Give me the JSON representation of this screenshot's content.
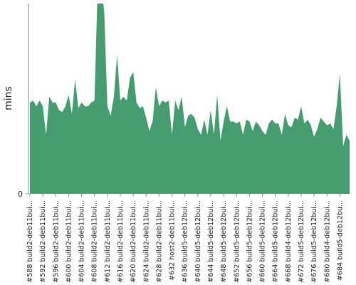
{
  "chart_data": {
    "type": "area",
    "y_label": "mins",
    "color": "#459c6e",
    "ylim": [
      0,
      100
    ],
    "yticks": [
      0
    ],
    "categories": [
      "#588 build2-deb11bui...",
      null,
      null,
      null,
      "#592 build2-deb11bui...",
      null,
      null,
      null,
      "#596 build2-deb11bui...",
      null,
      null,
      null,
      "#600 build2-deb11bui...",
      null,
      null,
      null,
      "#604 build2-deb11bui...",
      null,
      null,
      null,
      "#608 build2-deb11bui...",
      null,
      null,
      null,
      "#612 build2-deb11bui...",
      null,
      null,
      null,
      "#616 build2-deb11bui...",
      null,
      null,
      null,
      "#620 build2-deb11bui...",
      null,
      null,
      null,
      "#624 build2-deb11bui...",
      null,
      null,
      null,
      "#628 build2-deb11bui...",
      null,
      null,
      null,
      "#632 host2-deb11bui...",
      null,
      null,
      null,
      "#636 build5-deb12bui...",
      null,
      null,
      null,
      "#640 build5-deb12bui...",
      null,
      null,
      null,
      "#644 build5-deb12bui...",
      null,
      null,
      null,
      "#648 build5-deb12bui...",
      null,
      null,
      null,
      "#652 build5-deb12bui...",
      null,
      null,
      null,
      "#656 build5-deb12bui...",
      null,
      null,
      null,
      "#660 build5-deb12bui...",
      null,
      null,
      null,
      "#664 build5-deb12bui...",
      null,
      null,
      null,
      "#668 build4-deb12bui...",
      null,
      null,
      null,
      "#672 build5-deb12bui...",
      null,
      null,
      null,
      "#676 build5-deb12bui...",
      null,
      null,
      null,
      "#680 build4-deb12bui...",
      null,
      null,
      null,
      "#684 build5-deb12bu...",
      null,
      null,
      null
    ],
    "values": [
      48,
      49,
      46,
      49,
      46,
      31,
      51,
      48,
      48,
      44,
      43,
      46,
      52,
      42,
      60,
      45,
      48,
      46,
      46,
      48,
      49,
      110,
      110,
      96,
      46,
      41,
      51,
      73,
      49,
      51,
      49,
      61,
      64,
      48,
      45,
      46,
      40,
      33,
      38,
      56,
      46,
      49,
      48,
      49,
      31,
      49,
      44,
      51,
      35,
      41,
      42,
      40,
      34,
      31,
      39,
      31,
      44,
      31,
      52,
      28,
      38,
      46,
      38,
      38,
      37,
      38,
      31,
      39,
      38,
      33,
      38,
      36,
      33,
      31,
      37,
      39,
      37,
      37,
      31,
      42,
      36,
      35,
      40,
      39,
      46,
      37,
      39,
      36,
      30,
      34,
      40,
      38,
      36,
      37,
      34,
      46,
      63,
      25,
      31,
      28
    ]
  }
}
